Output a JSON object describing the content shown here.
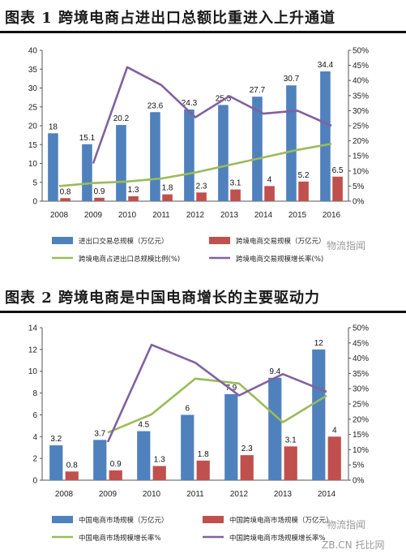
{
  "figure1": {
    "title": "图表 1   跨境电商占进出口总额比重进入上升通道",
    "chart_data": {
      "type": "bar",
      "categories": [
        "2008",
        "2009",
        "2010",
        "2011",
        "2012",
        "2013",
        "2014",
        "2015",
        "2016"
      ],
      "ylim": [
        0,
        40
      ],
      "ylim_right": [
        0,
        50
      ],
      "y_ticks": [
        "0",
        "5",
        "10",
        "15",
        "20",
        "25",
        "30",
        "35",
        "40"
      ],
      "y2_ticks": [
        "0%",
        "5%",
        "10%",
        "15%",
        "20%",
        "25%",
        "30%",
        "35%",
        "40%",
        "45%",
        "50%"
      ],
      "series": [
        {
          "name": "进出口交易总规模（万亿元）",
          "kind": "bar",
          "axis": "left",
          "color": "#4f81bd",
          "values": [
            18,
            15.1,
            20.2,
            23.6,
            24.3,
            25.5,
            27.7,
            30.7,
            34.4
          ],
          "labels": [
            "18",
            "15.1",
            "20.2",
            "23.6",
            "24.3",
            "25.5",
            "27.7",
            "30.7",
            "34.4"
          ]
        },
        {
          "name": "跨境电商交易规模（万亿元）",
          "kind": "bar",
          "axis": "left",
          "color": "#c0504d",
          "values": [
            0.8,
            0.9,
            1.3,
            1.8,
            2.3,
            3.1,
            4,
            5.2,
            6.5
          ],
          "labels": [
            "0.8",
            "0.9",
            "1.3",
            "1.8",
            "2.3",
            "3.1",
            "4",
            "5.2",
            "6.5"
          ]
        },
        {
          "name": "跨境电商占进出口总规模比例(%)",
          "kind": "line",
          "axis": "right",
          "color": "#9bbb59",
          "values": [
            5,
            6,
            6.5,
            7.5,
            9.5,
            12,
            14.5,
            17,
            19
          ]
        },
        {
          "name": "跨境电商交易规模增长率(%)",
          "kind": "line",
          "axis": "right",
          "color": "#7f62a1",
          "values": [
            null,
            12.5,
            44.4,
            38.5,
            27.8,
            34.8,
            29.0,
            30.0,
            25.0
          ]
        }
      ]
    }
  },
  "figure2": {
    "title": "图表 2   跨境电商是中国电商增长的主要驱动力",
    "chart_data": {
      "type": "bar",
      "categories": [
        "2008",
        "2009",
        "2010",
        "2011",
        "2012",
        "2013",
        "2014"
      ],
      "ylim": [
        0,
        14
      ],
      "ylim_right": [
        0,
        50
      ],
      "y_ticks": [
        "0",
        "2",
        "4",
        "6",
        "8",
        "10",
        "12",
        "14"
      ],
      "y2_ticks": [
        "0%",
        "5%",
        "10%",
        "15%",
        "20%",
        "25%",
        "30%",
        "35%",
        "40%",
        "45%",
        "50%"
      ],
      "series": [
        {
          "name": "中国电商市场规模（万亿元）",
          "kind": "bar",
          "axis": "left",
          "color": "#4f81bd",
          "values": [
            3.2,
            3.7,
            4.5,
            6,
            7.9,
            9.4,
            12
          ],
          "labels": [
            "3.2",
            "3.7",
            "4.5",
            "6",
            "7.9",
            "9.4",
            "12"
          ]
        },
        {
          "name": "中国跨境电商市场规模（万亿元）",
          "kind": "bar",
          "axis": "left",
          "color": "#c0504d",
          "values": [
            0.8,
            0.9,
            1.3,
            1.8,
            2.3,
            3.1,
            4
          ],
          "labels": [
            "0.8",
            "0.9",
            "1.3",
            "1.8",
            "2.3",
            "3.1",
            "4"
          ]
        },
        {
          "name": "中国电商市场规模增长率%",
          "kind": "line",
          "axis": "right",
          "color": "#9bbb59",
          "values": [
            null,
            15.6,
            21.6,
            33.3,
            31.7,
            19.0,
            27.7
          ]
        },
        {
          "name": "中国跨境电商市场规模增长率%",
          "kind": "line",
          "axis": "right",
          "color": "#7f62a1",
          "values": [
            null,
            12.5,
            44.4,
            38.5,
            27.8,
            34.8,
            29.0
          ]
        }
      ]
    }
  },
  "watermarks": {
    "wechat": "物流指闻",
    "site": "ZB.CN 托比网"
  }
}
